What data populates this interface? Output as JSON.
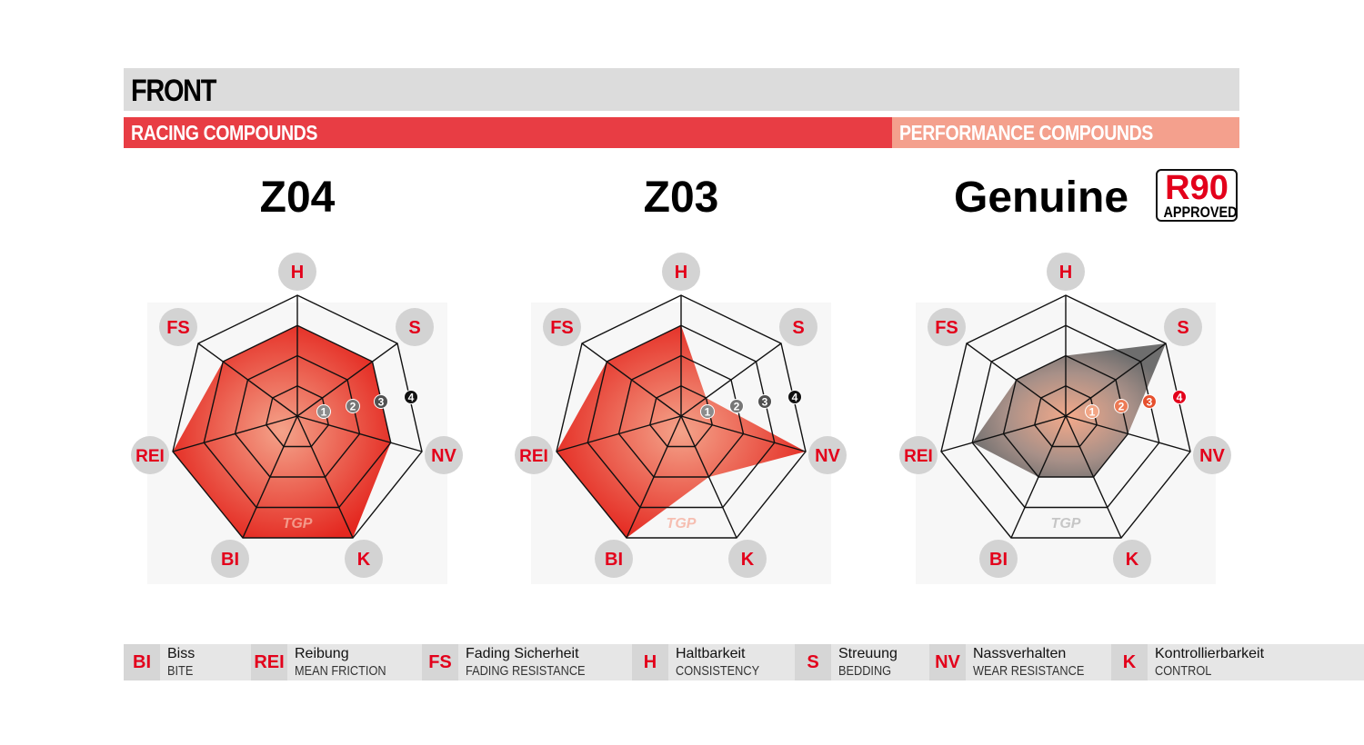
{
  "header": {
    "title": "FRONT",
    "racing": "RACING COMPOUNDS",
    "performance": "PERFORMANCE COMPOUNDS"
  },
  "badge": {
    "main": "R90",
    "sub": "APPROVED"
  },
  "chart_data": [
    {
      "type": "radar",
      "title": "Z04",
      "axes": [
        "H",
        "S",
        "NV",
        "K",
        "BI",
        "REI",
        "FS"
      ],
      "scale": [
        1,
        2,
        3,
        4
      ],
      "values": [
        3,
        3,
        3,
        4,
        4,
        4,
        3
      ],
      "color": "#e8302a"
    },
    {
      "type": "radar",
      "title": "Z03",
      "axes": [
        "H",
        "S",
        "NV",
        "K",
        "BI",
        "REI",
        "FS"
      ],
      "scale": [
        1,
        2,
        3,
        4
      ],
      "values": [
        3,
        1,
        4,
        2,
        4,
        4,
        3
      ],
      "color": "#e8302a"
    },
    {
      "type": "radar",
      "title": "Genuine",
      "axes": [
        "H",
        "S",
        "NV",
        "K",
        "BI",
        "REI",
        "FS"
      ],
      "scale": [
        1,
        2,
        3,
        4
      ],
      "values": [
        2,
        4,
        2,
        2,
        2,
        3,
        2
      ],
      "color": "#8a8a8a"
    }
  ],
  "legend": [
    {
      "code": "BI",
      "de": "Biss",
      "en": "BITE"
    },
    {
      "code": "REI",
      "de": "Reibung",
      "en": "MEAN FRICTION"
    },
    {
      "code": "FS",
      "de": "Fading Sicherheit",
      "en": "FADING RESISTANCE"
    },
    {
      "code": "H",
      "de": "Haltbarkeit",
      "en": "CONSISTENCY"
    },
    {
      "code": "S",
      "de": "Streuung",
      "en": "BEDDING"
    },
    {
      "code": "NV",
      "de": "Nassverhalten",
      "en": "WEAR RESISTANCE"
    },
    {
      "code": "K",
      "de": "Kontrollierbarkeit",
      "en": "CONTROL"
    }
  ]
}
